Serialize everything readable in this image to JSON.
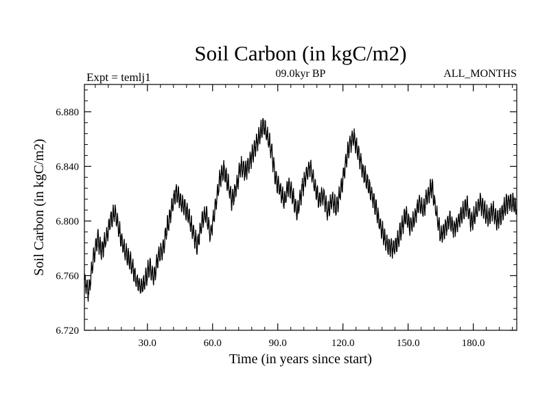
{
  "chart_data": {
    "type": "line",
    "title": "Soil Carbon (in kgC/m2)",
    "left_label": "Expt = temlj1",
    "center_label": "09.0kyr BP",
    "right_label": "ALL_MONTHS",
    "xlabel": "Time (in years since start)",
    "ylabel": "Soil Carbon (in kgC/m2)",
    "xlim": [
      1,
      200
    ],
    "ylim": [
      6.72,
      6.9
    ],
    "x_ticks": [
      30,
      60,
      90,
      120,
      150,
      180
    ],
    "x_tick_labels": [
      "30.0",
      "60.0",
      "90.0",
      "120.0",
      "150.0",
      "180.0"
    ],
    "y_ticks": [
      6.72,
      6.76,
      6.8,
      6.84,
      6.88
    ],
    "y_tick_labels": [
      "6.720",
      "6.760",
      "6.800",
      "6.840",
      "6.880"
    ],
    "series": [
      {
        "name": "Soil Carbon",
        "color": "#000000",
        "seasonal_amplitude": 0.006,
        "x": [
          1,
          3,
          5,
          7,
          9,
          11,
          13,
          15,
          17,
          19,
          21,
          23,
          25,
          27,
          29,
          31,
          33,
          35,
          37,
          39,
          41,
          43,
          45,
          47,
          49,
          51,
          53,
          55,
          57,
          59,
          61,
          63,
          65,
          67,
          69,
          71,
          73,
          75,
          77,
          79,
          81,
          83,
          85,
          87,
          89,
          91,
          93,
          95,
          97,
          99,
          101,
          103,
          105,
          107,
          109,
          111,
          113,
          115,
          117,
          119,
          121,
          123,
          125,
          127,
          129,
          131,
          133,
          135,
          137,
          139,
          141,
          143,
          145,
          147,
          149,
          151,
          153,
          155,
          157,
          159,
          161,
          163,
          165,
          167,
          169,
          171,
          173,
          175,
          177,
          179,
          181,
          183,
          185,
          187,
          189,
          191,
          193,
          195,
          197,
          200
        ],
        "values": [
          6.757,
          6.748,
          6.772,
          6.787,
          6.778,
          6.788,
          6.801,
          6.806,
          6.793,
          6.781,
          6.774,
          6.767,
          6.756,
          6.752,
          6.756,
          6.768,
          6.758,
          6.775,
          6.778,
          6.795,
          6.808,
          6.821,
          6.816,
          6.811,
          6.803,
          6.792,
          6.782,
          6.799,
          6.806,
          6.789,
          6.808,
          6.828,
          6.838,
          6.828,
          6.814,
          6.826,
          6.84,
          6.836,
          6.843,
          6.851,
          6.86,
          6.87,
          6.864,
          6.852,
          6.831,
          6.823,
          6.815,
          6.827,
          6.818,
          6.806,
          6.822,
          6.834,
          6.84,
          6.826,
          6.815,
          6.82,
          6.806,
          6.817,
          6.809,
          6.822,
          6.84,
          6.856,
          6.862,
          6.85,
          6.838,
          6.829,
          6.821,
          6.81,
          6.798,
          6.788,
          6.782,
          6.779,
          6.785,
          6.795,
          6.805,
          6.796,
          6.802,
          6.813,
          6.808,
          6.819,
          6.825,
          6.806,
          6.789,
          6.794,
          6.801,
          6.794,
          6.799,
          6.806,
          6.812,
          6.799,
          6.805,
          6.814,
          6.808,
          6.802,
          6.808,
          6.8,
          6.805,
          6.812,
          6.815,
          6.81
        ]
      }
    ],
    "grid": false
  }
}
